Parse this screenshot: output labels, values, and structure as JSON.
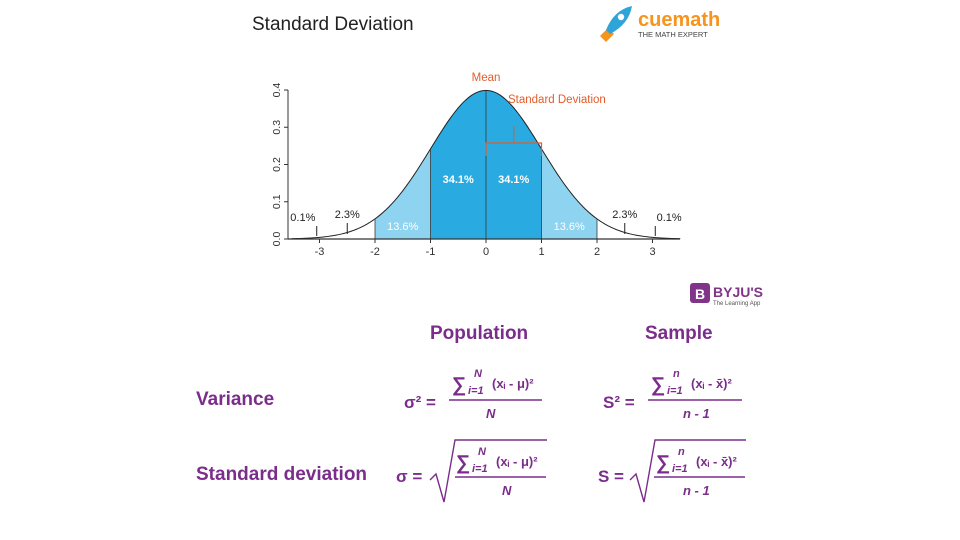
{
  "title": "Standard Deviation",
  "cuemath": {
    "brand": "cuemath",
    "tagline": "THE MATH EXPERT",
    "icon": "rocket-icon"
  },
  "byjus": {
    "brand": "BYJU'S",
    "tagline": "The Learning App",
    "icon": "byjus-b-icon"
  },
  "colors": {
    "purple": "#7b2d8b",
    "dark_blue": "#29abe2",
    "light_blue": "#8ed3f0",
    "orange": "#e25c2a",
    "cue_orange": "#f7941d"
  },
  "chart_data": {
    "type": "area",
    "title": "",
    "xlabel": "",
    "ylabel": "",
    "xlim": [
      -3.5,
      3.5
    ],
    "ylim": [
      0,
      0.4
    ],
    "xticks": [
      "-3",
      "-2",
      "-1",
      "0",
      "1",
      "2",
      "3"
    ],
    "yticks": [
      "0.0",
      "0.1",
      "0.2",
      "0.3",
      "0.4"
    ],
    "regions": [
      {
        "from": -3,
        "to": -2,
        "label": "2.3%"
      },
      {
        "from": -2,
        "to": -1,
        "label": "13.6%"
      },
      {
        "from": -1,
        "to": 0,
        "label": "34.1%"
      },
      {
        "from": 0,
        "to": 1,
        "label": "34.1%"
      },
      {
        "from": 1,
        "to": 2,
        "label": "13.6%"
      },
      {
        "from": 2,
        "to": 3,
        "label": "2.3%"
      }
    ],
    "tail_labels": [
      "0.1%",
      "0.1%"
    ],
    "annotations": {
      "mean": "Mean",
      "std": "Standard Deviation"
    }
  },
  "formulas": {
    "population_header": "Population",
    "sample_header": "Sample",
    "variance_label": "Variance",
    "sd_label": "Standard deviation",
    "pop_var_lhs": "σ² =",
    "pop_sd_lhs": "σ =",
    "samp_var_lhs": "S² =",
    "samp_sd_lhs": "S =",
    "sigma": "∑",
    "pop_upper": "N",
    "samp_upper": "n",
    "lower": "i=1",
    "pop_term": "(xᵢ - μ)²",
    "samp_term": "(xᵢ - x̄)²",
    "pop_den": "N",
    "samp_den": "n - 1"
  }
}
